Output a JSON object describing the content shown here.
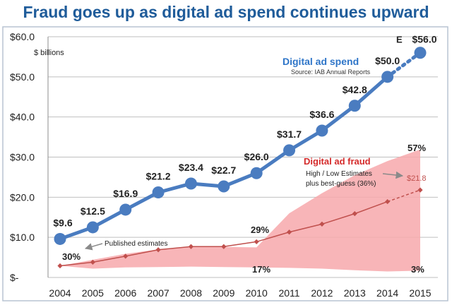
{
  "title": "Fraud goes up as digital ad spend continues upward",
  "chart_data": {
    "type": "line",
    "title": "Fraud goes up as digital ad spend continues upward",
    "xlabel": "",
    "ylabel": "$ billions",
    "ylim": [
      0,
      60
    ],
    "yticks": [
      {
        "value": 60,
        "label": "$60.0"
      },
      {
        "value": 50,
        "label": "$50.0"
      },
      {
        "value": 40,
        "label": "$40.0"
      },
      {
        "value": 30,
        "label": "$30.0"
      },
      {
        "value": 20,
        "label": "$20.0"
      },
      {
        "value": 10,
        "label": "$10.0"
      },
      {
        "value": 0,
        "label": "$-"
      }
    ],
    "categories": [
      "2004",
      "2005",
      "2006",
      "2007",
      "2008",
      "2009",
      "2010",
      "2011",
      "2012",
      "2013",
      "2014",
      "2015"
    ],
    "grid": true,
    "series": [
      {
        "name": "Digital ad spend",
        "source": "Source: IAB Annual Reports",
        "color": "#4a7cc0",
        "values": [
          9.6,
          12.5,
          16.9,
          21.2,
          23.4,
          22.7,
          26.0,
          31.7,
          36.6,
          42.8,
          50.0,
          56.0
        ],
        "labels": [
          "$9.6",
          "$12.5",
          "$16.9",
          "$21.2",
          "$23.4",
          "$22.7",
          "$26.0",
          "$31.7",
          "$36.6",
          "$42.8",
          "$50.0",
          "$56.0"
        ],
        "estimated_last": true,
        "estimate_marker": "E"
      },
      {
        "name": "Digital ad fraud",
        "color": "#c0504d",
        "values": [
          2.9,
          3.8,
          5.3,
          6.9,
          7.7,
          7.7,
          8.9,
          11.3,
          13.3,
          15.9,
          18.9,
          21.8
        ],
        "estimated_last": true,
        "end_label": "$21.8"
      },
      {
        "name": "High estimate",
        "values": [
          2.9,
          4.4,
          5.9,
          7.0,
          7.7,
          7.6,
          7.5,
          16.0,
          21.0,
          25.5,
          29.0,
          31.9
        ]
      },
      {
        "name": "Low estimate",
        "values": [
          2.9,
          2.2,
          2.5,
          2.6,
          2.7,
          2.6,
          2.5,
          2.4,
          2.2,
          1.8,
          1.5,
          1.7
        ]
      }
    ],
    "band": {
      "name": "High / Low Estimates",
      "fill": "#f7a8ab"
    },
    "annotations": {
      "published": "Published estimates",
      "pct_30": "30%",
      "pct_29": "29%",
      "pct_17": "17%",
      "pct_57": "57%",
      "pct_3": "3%",
      "fraud_note_line1": "High / Low Estimates",
      "fraud_note_line2": "plus best-guess (36%)"
    }
  }
}
